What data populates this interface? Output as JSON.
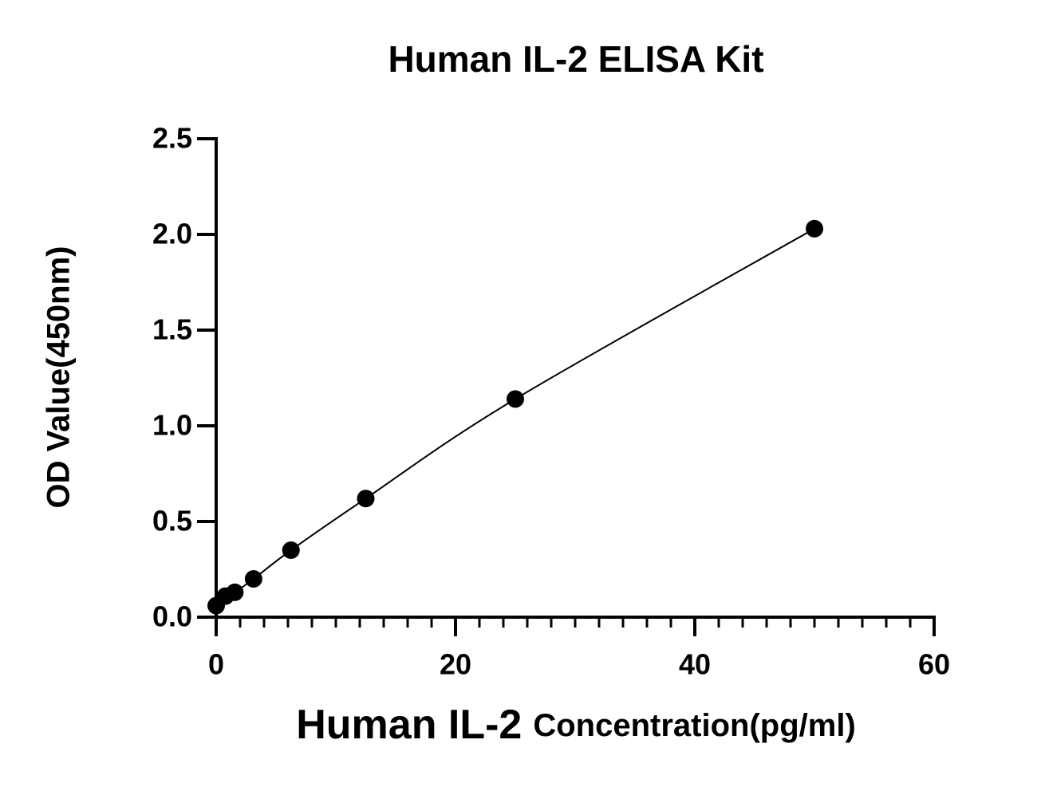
{
  "chart_data": {
    "type": "scatter",
    "title": "Human IL-2 ELISA Kit",
    "xlabel": [
      "Human IL-2",
      "Concentration(pg/ml)"
    ],
    "ylabel": "OD Value(450nm)",
    "series": [
      {
        "color": "#000000",
        "curve": true,
        "x": [
          0,
          0.78,
          1.56,
          3.125,
          6.25,
          12.5,
          25,
          50
        ],
        "values": [
          0.06,
          0.11,
          0.13,
          0.2,
          0.35,
          0.62,
          1.14,
          2.03
        ]
      }
    ],
    "xlim": [
      0,
      60
    ],
    "xticks": [
      0,
      20,
      40,
      60
    ],
    "xminorticks": [
      2,
      4,
      6,
      8,
      10,
      12,
      14,
      16,
      18,
      22,
      24,
      26,
      28,
      30,
      32,
      34,
      36,
      38,
      42,
      44,
      46,
      48,
      50,
      52,
      54,
      56,
      58
    ],
    "ylim": [
      0,
      2.5
    ],
    "yticks": [
      {
        "value": 0,
        "label": "0.0"
      },
      0.5,
      {
        "value": 1,
        "label": "1.0"
      },
      1.5,
      {
        "value": 2,
        "label": "2.0"
      },
      2.5
    ],
    "grid": false
  }
}
